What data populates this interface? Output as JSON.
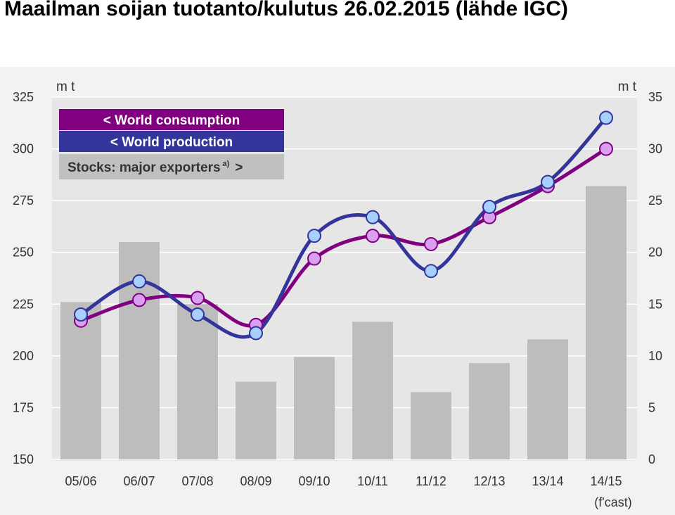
{
  "title": "Maailman soijan tuotanto/kulutus 26.02.2015 (lähde IGC)",
  "colors": {
    "consumption_line": "#800080",
    "consumption_marker": "#d9a0f0",
    "production_line": "#33359a",
    "production_marker": "#a8d0ff",
    "stocks_bar": "#bdbdbd",
    "plot_background": "#e6e6e6",
    "legend_stocks_bg": "#c0c0c0"
  },
  "chart_data": {
    "type": "bar+line",
    "categories": [
      "05/06",
      "06/07",
      "07/08",
      "08/09",
      "09/10",
      "10/11",
      "11/12",
      "12/13",
      "13/14",
      "14/15"
    ],
    "category_note": "(f'cast)",
    "left_axis": {
      "unit": "m t",
      "ylim": [
        150,
        325
      ],
      "ticks": [
        "150",
        "175",
        "200",
        "225",
        "250",
        "275",
        "300",
        "325"
      ]
    },
    "right_axis": {
      "unit": "m t",
      "ylim": [
        0,
        35
      ],
      "ticks": [
        "0",
        "5",
        "10",
        "15",
        "20",
        "25",
        "30",
        "35"
      ]
    },
    "series": [
      {
        "name": "< World consumption",
        "type": "line",
        "axis": "left",
        "values": [
          217,
          227,
          228,
          215,
          247,
          258,
          254,
          267,
          282,
          300
        ]
      },
      {
        "name": "< World production",
        "type": "line",
        "axis": "left",
        "values": [
          220,
          236,
          220,
          211,
          258,
          267,
          241,
          272,
          284,
          315
        ]
      },
      {
        "name": "Stocks: major exporters",
        "name_suffix": "a)",
        "name_arrow": ">",
        "type": "bar",
        "axis": "right",
        "values": [
          15.2,
          21.0,
          15.0,
          7.5,
          9.9,
          13.3,
          6.5,
          9.3,
          11.6,
          26.4
        ]
      }
    ],
    "grid": true,
    "legend_position": "top-left"
  }
}
